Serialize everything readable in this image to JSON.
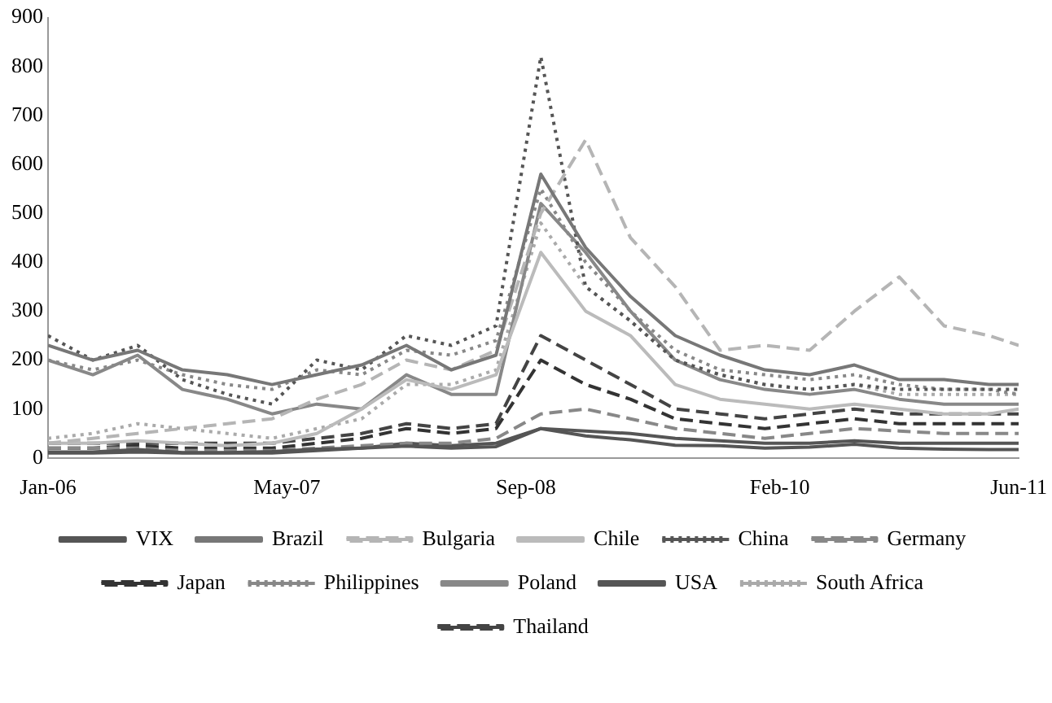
{
  "chart_data": {
    "type": "line",
    "x": [
      "2006-01",
      "2006-04",
      "2006-07",
      "2006-10",
      "2007-01",
      "2007-04",
      "2007-07",
      "2007-10",
      "2008-01",
      "2008-04",
      "2008-07",
      "2008-10",
      "2009-01",
      "2009-04",
      "2009-07",
      "2009-10",
      "2010-01",
      "2010-04",
      "2010-07",
      "2010-10",
      "2011-01",
      "2011-04",
      "2011-06"
    ],
    "series": [
      {
        "name": "VIX",
        "color": "#555555",
        "line_style": "solid",
        "values": [
          12,
          12,
          17,
          11,
          11,
          13,
          18,
          20,
          24,
          20,
          23,
          60,
          45,
          37,
          26,
          25,
          20,
          22,
          28,
          20,
          18,
          17,
          17
        ]
      },
      {
        "name": "Brazil",
        "color": "#777777",
        "line_style": "solid",
        "values": [
          230,
          200,
          220,
          180,
          170,
          150,
          170,
          190,
          230,
          180,
          210,
          580,
          430,
          330,
          250,
          210,
          180,
          170,
          190,
          160,
          160,
          150,
          150
        ]
      },
      {
        "name": "Bulgaria",
        "color": "#b5b5b5",
        "line_style": "dashed",
        "values": [
          30,
          40,
          50,
          60,
          70,
          80,
          120,
          150,
          200,
          180,
          220,
          500,
          650,
          450,
          350,
          220,
          230,
          220,
          300,
          370,
          270,
          250,
          230
        ]
      },
      {
        "name": "Chile",
        "color": "#bbbbbb",
        "line_style": "solid",
        "values": [
          30,
          30,
          35,
          30,
          25,
          30,
          50,
          100,
          160,
          140,
          170,
          420,
          300,
          250,
          150,
          120,
          110,
          100,
          110,
          100,
          90,
          90,
          100
        ]
      },
      {
        "name": "China",
        "color": "#555555",
        "line_style": "dotted",
        "values": [
          250,
          200,
          230,
          160,
          130,
          110,
          200,
          180,
          250,
          230,
          270,
          820,
          350,
          280,
          200,
          170,
          150,
          140,
          150,
          140,
          140,
          140,
          140
        ]
      },
      {
        "name": "Germany",
        "color": "#888888",
        "line_style": "dashed",
        "values": [
          20,
          20,
          20,
          15,
          15,
          15,
          20,
          25,
          30,
          30,
          40,
          90,
          100,
          80,
          60,
          50,
          40,
          50,
          60,
          55,
          50,
          50,
          50
        ]
      },
      {
        "name": "Japan",
        "color": "#333333",
        "line_style": "dashed",
        "values": [
          20,
          20,
          25,
          20,
          20,
          20,
          30,
          40,
          60,
          50,
          60,
          200,
          150,
          120,
          80,
          70,
          60,
          70,
          80,
          70,
          70,
          70,
          70
        ]
      },
      {
        "name": "Philippines",
        "color": "#888888",
        "line_style": "dotted",
        "values": [
          200,
          180,
          200,
          170,
          150,
          140,
          180,
          170,
          220,
          210,
          240,
          550,
          400,
          300,
          220,
          180,
          170,
          160,
          170,
          150,
          140,
          140,
          130
        ]
      },
      {
        "name": "Poland",
        "color": "#888888",
        "line_style": "solid",
        "values": [
          200,
          170,
          210,
          140,
          120,
          90,
          110,
          100,
          170,
          130,
          130,
          520,
          420,
          300,
          200,
          160,
          140,
          130,
          140,
          120,
          110,
          110,
          110
        ]
      },
      {
        "name": "USA",
        "color": "#555555",
        "line_style": "solid",
        "values": [
          10,
          10,
          12,
          10,
          10,
          10,
          15,
          20,
          30,
          25,
          30,
          60,
          55,
          50,
          40,
          35,
          30,
          30,
          35,
          30,
          30,
          30,
          30
        ]
      },
      {
        "name": "South Africa",
        "color": "#aaaaaa",
        "line_style": "dotted",
        "values": [
          40,
          50,
          70,
          60,
          50,
          40,
          60,
          80,
          150,
          150,
          180,
          480,
          350,
          280,
          200,
          170,
          150,
          140,
          150,
          130,
          130,
          130,
          130
        ]
      },
      {
        "name": "Thailand",
        "color": "#444444",
        "line_style": "dashed",
        "values": [
          30,
          30,
          30,
          30,
          30,
          30,
          40,
          50,
          70,
          60,
          70,
          250,
          200,
          150,
          100,
          90,
          80,
          90,
          100,
          90,
          90,
          90,
          90
        ]
      }
    ],
    "xlim": [
      "2006-01",
      "2011-06"
    ],
    "xticks": [
      {
        "value": "2006-01",
        "label": "Jan-06"
      },
      {
        "value": "2007-05",
        "label": "May-07"
      },
      {
        "value": "2008-09",
        "label": "Sep-08"
      },
      {
        "value": "2010-02",
        "label": "Feb-10"
      },
      {
        "value": "2011-06",
        "label": "Jun-11"
      }
    ],
    "ylim": [
      0,
      900
    ],
    "yticks": [
      0,
      100,
      200,
      300,
      400,
      500,
      600,
      700,
      800,
      900
    ],
    "grid": false,
    "legend": "bottom"
  }
}
